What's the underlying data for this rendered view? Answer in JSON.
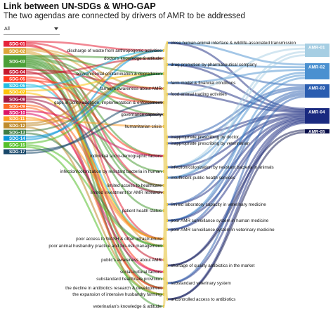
{
  "title": "Link between UN-SDGs & WHO-GAP",
  "subtitle": "The two agendas are connected by drivers of AMR to be addressed",
  "filter": {
    "value": "All"
  },
  "sdgs": [
    {
      "label": "SDG-01",
      "color": "#e5243b",
      "w": 3
    },
    {
      "label": "SDG-02",
      "color": "#dda63a",
      "w": 3
    },
    {
      "label": "SDG-03",
      "color": "#4c9f38",
      "w": 9
    },
    {
      "label": "SDG-04",
      "color": "#c5192d",
      "w": 3
    },
    {
      "label": "SDG-05",
      "color": "#ff3a21",
      "w": 3
    },
    {
      "label": "SDG-06",
      "color": "#26bde2",
      "w": 2
    },
    {
      "label": "SDG-07",
      "color": "#fcc30b",
      "w": 2
    },
    {
      "label": "SDG-08",
      "color": "#a21942",
      "w": 4
    },
    {
      "label": "SDG-09",
      "color": "#fd6925",
      "w": 2
    },
    {
      "label": "SDG-10",
      "color": "#dd1367",
      "w": 2
    },
    {
      "label": "SDG-11",
      "color": "#fd9d24",
      "w": 2
    },
    {
      "label": "SDG-12",
      "color": "#bf8b2e",
      "w": 3
    },
    {
      "label": "SDG-13",
      "color": "#3f7e44",
      "w": 2
    },
    {
      "label": "SDG-14",
      "color": "#0a97d9",
      "w": 2
    },
    {
      "label": "SDG-15",
      "color": "#56c02b",
      "w": 3
    },
    {
      "label": "SDG-17",
      "color": "#19486a",
      "w": 2
    }
  ],
  "drivers_left": [
    "discharge of waste from anthropogenic activities",
    "doctor's knowledge & attitude",
    "environmental contamination & degradation",
    "farmer's awareness about AMR",
    "gaps in policy adoption, implementation & enforcement",
    "governance capacity",
    "humanitarian crisis",
    "individual socio-demographic factors",
    "infection/colonization by resistant bacteria in human",
    "limited access to healthcare",
    "limited investment for AMR research",
    "patient health status",
    "poor access to WASH & other infrastructure",
    "poor animal husbandry practice and bio-risk management",
    "public's awareness about AMR",
    "social-cultural factors",
    "substandard healthcare provision",
    "the decline in antibiotics research & development",
    "the expansion of intensive husbandry farming",
    "veterinarian's knowledge & attitude"
  ],
  "drivers_right": [
    "close human-animal interface & wildlife-associated transmission",
    "drug promotion by pharmaceutical company",
    "farm model & financial conditions",
    "food-animal trading activities",
    "inappropriate prescribing by doctor",
    "inappropriate prescribing by veterinarian",
    "infection/colonization by resistant bacteria in animals",
    "insufficient public health services",
    "limited laboratory capacity in veterinary medicine",
    "poor AMR surveillance system in human medicine",
    "poor AMR surveillance system in veterinary medicine",
    "shortage of quality antibiotics in the market",
    "substandard veterinary system",
    "uncontrolled access to antibiotics"
  ],
  "amrs": [
    {
      "label": "AMR-01",
      "color": "#a6cee3"
    },
    {
      "label": "AMR-02",
      "color": "#4a90d0"
    },
    {
      "label": "AMR-03",
      "color": "#2a5db0"
    },
    {
      "label": "AMR-04",
      "color": "#1a2a80"
    },
    {
      "label": "AMR-05",
      "color": "#0a0f4a"
    }
  ],
  "links_sdg_driver": [
    [
      0,
      0
    ],
    [
      0,
      4
    ],
    [
      0,
      12
    ],
    [
      0,
      9
    ],
    [
      1,
      3
    ],
    [
      1,
      4
    ],
    [
      1,
      13
    ],
    [
      1,
      18
    ],
    [
      2,
      1
    ],
    [
      2,
      2
    ],
    [
      2,
      4
    ],
    [
      2,
      5
    ],
    [
      2,
      7
    ],
    [
      2,
      8
    ],
    [
      2,
      9
    ],
    [
      2,
      10
    ],
    [
      2,
      11
    ],
    [
      2,
      16
    ],
    [
      2,
      19
    ],
    [
      2,
      17
    ],
    [
      3,
      3
    ],
    [
      3,
      14
    ],
    [
      3,
      1
    ],
    [
      4,
      7
    ],
    [
      4,
      15
    ],
    [
      4,
      4
    ],
    [
      5,
      12
    ],
    [
      5,
      0
    ],
    [
      6,
      2
    ],
    [
      6,
      12
    ],
    [
      7,
      5
    ],
    [
      7,
      10
    ],
    [
      7,
      17
    ],
    [
      8,
      12
    ],
    [
      8,
      17
    ],
    [
      9,
      7
    ],
    [
      9,
      15
    ],
    [
      10,
      12
    ],
    [
      10,
      6
    ],
    [
      11,
      0
    ],
    [
      11,
      2
    ],
    [
      11,
      18
    ],
    [
      12,
      2
    ],
    [
      12,
      13
    ],
    [
      13,
      2
    ],
    [
      13,
      0
    ],
    [
      14,
      2
    ],
    [
      14,
      13
    ],
    [
      14,
      18
    ],
    [
      15,
      5
    ],
    [
      15,
      4
    ]
  ],
  "links_ld_rd": [
    [
      0,
      0
    ],
    [
      2,
      0
    ],
    [
      6,
      0
    ],
    [
      13,
      0
    ],
    [
      18,
      0
    ],
    [
      1,
      4
    ],
    [
      14,
      4
    ],
    [
      16,
      4
    ],
    [
      3,
      5
    ],
    [
      19,
      5
    ],
    [
      13,
      5
    ],
    [
      4,
      1
    ],
    [
      4,
      7
    ],
    [
      4,
      9
    ],
    [
      4,
      10
    ],
    [
      5,
      12
    ],
    [
      5,
      9
    ],
    [
      5,
      7
    ],
    [
      7,
      11
    ],
    [
      7,
      13
    ],
    [
      8,
      6
    ],
    [
      8,
      3
    ],
    [
      9,
      7
    ],
    [
      9,
      13
    ],
    [
      10,
      8
    ],
    [
      10,
      11
    ],
    [
      11,
      4
    ],
    [
      11,
      13
    ],
    [
      12,
      6
    ],
    [
      12,
      0
    ],
    [
      15,
      13
    ],
    [
      15,
      4
    ],
    [
      16,
      11
    ],
    [
      16,
      13
    ],
    [
      17,
      11
    ],
    [
      17,
      8
    ],
    [
      18,
      2
    ],
    [
      18,
      3
    ],
    [
      19,
      12
    ],
    [
      19,
      5
    ],
    [
      2,
      6
    ],
    [
      3,
      2
    ],
    [
      14,
      13
    ]
  ],
  "links_rd_amr": [
    [
      0,
      0
    ],
    [
      0,
      1
    ],
    [
      0,
      3
    ],
    [
      1,
      2
    ],
    [
      1,
      3
    ],
    [
      1,
      1
    ],
    [
      2,
      3
    ],
    [
      2,
      1
    ],
    [
      3,
      0
    ],
    [
      3,
      3
    ],
    [
      4,
      2
    ],
    [
      4,
      3
    ],
    [
      5,
      2
    ],
    [
      5,
      3
    ],
    [
      6,
      0
    ],
    [
      6,
      1
    ],
    [
      6,
      3
    ],
    [
      7,
      0
    ],
    [
      7,
      3
    ],
    [
      7,
      1
    ],
    [
      8,
      3
    ],
    [
      8,
      2
    ],
    [
      9,
      2
    ],
    [
      9,
      1
    ],
    [
      9,
      3
    ],
    [
      10,
      2
    ],
    [
      10,
      3
    ],
    [
      11,
      3
    ],
    [
      11,
      4
    ],
    [
      12,
      3
    ],
    [
      12,
      2
    ],
    [
      13,
      3
    ],
    [
      13,
      4
    ]
  ]
}
